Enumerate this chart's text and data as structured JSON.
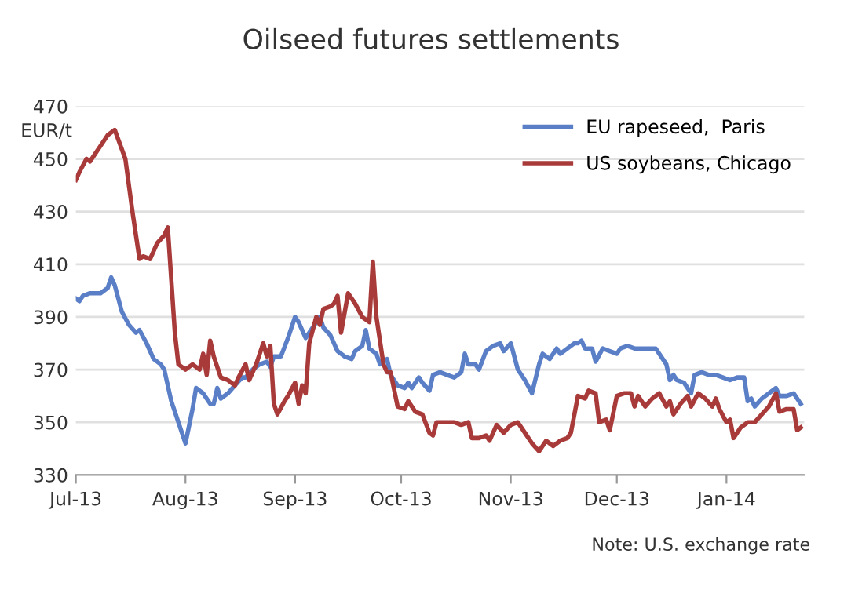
{
  "chart_data": {
    "type": "line",
    "title": "Oilseed futures settlements",
    "ylabel": "EUR/t",
    "xlim": [
      "2013-07-01",
      "2014-01-23"
    ],
    "ylim": [
      330,
      470
    ],
    "yticks": [
      330,
      350,
      370,
      390,
      410,
      430,
      450,
      470
    ],
    "xticks": [
      {
        "value": "2013-07-01",
        "label": "Jul-13"
      },
      {
        "value": "2013-08-01",
        "label": "Aug-13"
      },
      {
        "value": "2013-09-01",
        "label": "Sep-13"
      },
      {
        "value": "2013-10-01",
        "label": "Oct-13"
      },
      {
        "value": "2013-11-01",
        "label": "Nov-13"
      },
      {
        "value": "2013-12-01",
        "label": "Dec-13"
      },
      {
        "value": "2014-01-01",
        "label": "Jan-14"
      }
    ],
    "grid": "y",
    "legend": "top right",
    "line_style": "solid",
    "marker": "none",
    "annotations": [
      "Note: U.S. exchange rate"
    ],
    "series": [
      {
        "name": "EU rapeseed,  Paris",
        "color": "#5b7fc7",
        "x": [
          "2013-07-01",
          "2013-07-02",
          "2013-07-03",
          "2013-07-05",
          "2013-07-08",
          "2013-07-10",
          "2013-07-11",
          "2013-07-12",
          "2013-07-14",
          "2013-07-16",
          "2013-07-18",
          "2013-07-19",
          "2013-07-21",
          "2013-07-23",
          "2013-07-25",
          "2013-07-26",
          "2013-07-28",
          "2013-07-30",
          "2013-08-01",
          "2013-08-03",
          "2013-08-04",
          "2013-08-06",
          "2013-08-08",
          "2013-08-09",
          "2013-08-10",
          "2013-08-11",
          "2013-08-13",
          "2013-08-15",
          "2013-08-17",
          "2013-08-18",
          "2013-08-20",
          "2013-08-22",
          "2013-08-24",
          "2013-08-25",
          "2013-08-26",
          "2013-08-28",
          "2013-08-30",
          "2013-09-01",
          "2013-09-02",
          "2013-09-04",
          "2013-09-06",
          "2013-09-08",
          "2013-09-09",
          "2013-09-11",
          "2013-09-13",
          "2013-09-15",
          "2013-09-17",
          "2013-09-18",
          "2013-09-20",
          "2013-09-21",
          "2013-09-22",
          "2013-09-24",
          "2013-09-25",
          "2013-09-27",
          "2013-09-28",
          "2013-09-30",
          "2013-10-02",
          "2013-10-03",
          "2013-10-04",
          "2013-10-06",
          "2013-10-07",
          "2013-10-09",
          "2013-10-10",
          "2013-10-12",
          "2013-10-14",
          "2013-10-16",
          "2013-10-18",
          "2013-10-19",
          "2013-10-20",
          "2013-10-22",
          "2013-10-23",
          "2013-10-25",
          "2013-10-27",
          "2013-10-29",
          "2013-10-30",
          "2013-11-01",
          "2013-11-03",
          "2013-11-05",
          "2013-11-07",
          "2013-11-09",
          "2013-11-10",
          "2013-11-12",
          "2013-11-14",
          "2013-11-15",
          "2013-11-17",
          "2013-11-19",
          "2013-11-20",
          "2013-11-21",
          "2013-11-22",
          "2013-11-24",
          "2013-11-25",
          "2013-11-27",
          "2013-11-29",
          "2013-12-01",
          "2013-12-02",
          "2013-12-04",
          "2013-12-06",
          "2013-12-08",
          "2013-12-10",
          "2013-12-12",
          "2013-12-14",
          "2013-12-15",
          "2013-12-16",
          "2013-12-17",
          "2013-12-18",
          "2013-12-20",
          "2013-12-22",
          "2013-12-23",
          "2013-12-25",
          "2013-12-27",
          "2013-12-29",
          "2013-12-31",
          "2014-01-02",
          "2014-01-04",
          "2014-01-06",
          "2014-01-07",
          "2014-01-08",
          "2014-01-09",
          "2014-01-11",
          "2014-01-13",
          "2014-01-15",
          "2014-01-16",
          "2014-01-18",
          "2014-01-20",
          "2014-01-22"
        ],
        "values": [
          397,
          396,
          398,
          399,
          399,
          401,
          405,
          402,
          392,
          387,
          384,
          385,
          380,
          374,
          372,
          370,
          358,
          350,
          342,
          355,
          363,
          361,
          357,
          357,
          363,
          359,
          361,
          364,
          367,
          367,
          370,
          372,
          373,
          371,
          375,
          375,
          382,
          390,
          388,
          382,
          386,
          390,
          386,
          383,
          377,
          375,
          374,
          377,
          379,
          385,
          378,
          376,
          372,
          374,
          368,
          364,
          363,
          365,
          363,
          367,
          365,
          362,
          368,
          369,
          368,
          367,
          369,
          376,
          372,
          372,
          370,
          377,
          379,
          380,
          377,
          380,
          370,
          366,
          361,
          372,
          376,
          374,
          378,
          376,
          378,
          380,
          380,
          381,
          378,
          378,
          373,
          378,
          377,
          376,
          378,
          379,
          378,
          378,
          378,
          378,
          374,
          372,
          366,
          368,
          366,
          365,
          361,
          368,
          369,
          368,
          368,
          367,
          366,
          367,
          367,
          358,
          359,
          356,
          359,
          361,
          363,
          360,
          360,
          361,
          357
        ]
      },
      {
        "name": "US soybeans, Chicago",
        "color": "#a83a3a",
        "x": [
          "2013-07-01",
          "2013-07-02",
          "2013-07-04",
          "2013-07-05",
          "2013-07-08",
          "2013-07-10",
          "2013-07-12",
          "2013-07-15",
          "2013-07-17",
          "2013-07-19",
          "2013-07-20",
          "2013-07-22",
          "2013-07-24",
          "2013-07-26",
          "2013-07-27",
          "2013-07-29",
          "2013-07-30",
          "2013-08-01",
          "2013-08-03",
          "2013-08-05",
          "2013-08-06",
          "2013-08-07",
          "2013-08-08",
          "2013-08-09",
          "2013-08-11",
          "2013-08-13",
          "2013-08-15",
          "2013-08-16",
          "2013-08-18",
          "2013-08-19",
          "2013-08-21",
          "2013-08-22",
          "2013-08-23",
          "2013-08-24",
          "2013-08-25",
          "2013-08-26",
          "2013-08-27",
          "2013-08-29",
          "2013-08-30",
          "2013-09-01",
          "2013-09-02",
          "2013-09-03",
          "2013-09-04",
          "2013-09-05",
          "2013-09-07",
          "2013-09-08",
          "2013-09-09",
          "2013-09-11",
          "2013-09-12",
          "2013-09-13",
          "2013-09-14",
          "2013-09-16",
          "2013-09-18",
          "2013-09-20",
          "2013-09-22",
          "2013-09-23",
          "2013-09-24",
          "2013-09-26",
          "2013-09-27",
          "2013-09-28",
          "2013-09-30",
          "2013-10-02",
          "2013-10-03",
          "2013-10-05",
          "2013-10-07",
          "2013-10-09",
          "2013-10-10",
          "2013-10-11",
          "2013-10-14",
          "2013-10-16",
          "2013-10-18",
          "2013-10-20",
          "2013-10-21",
          "2013-10-23",
          "2013-10-25",
          "2013-10-26",
          "2013-10-28",
          "2013-10-30",
          "2013-11-01",
          "2013-11-03",
          "2013-11-05",
          "2013-11-07",
          "2013-11-09",
          "2013-11-11",
          "2013-11-13",
          "2013-11-15",
          "2013-11-17",
          "2013-11-18",
          "2013-11-20",
          "2013-11-22",
          "2013-11-23",
          "2013-11-25",
          "2013-11-26",
          "2013-11-28",
          "2013-11-29",
          "2013-12-01",
          "2013-12-03",
          "2013-12-05",
          "2013-12-06",
          "2013-12-07",
          "2013-12-09",
          "2013-12-11",
          "2013-12-13",
          "2013-12-15",
          "2013-12-16",
          "2013-12-17",
          "2013-12-19",
          "2013-12-21",
          "2013-12-22",
          "2013-12-24",
          "2013-12-26",
          "2013-12-28",
          "2013-12-29",
          "2013-12-30",
          "2014-01-01",
          "2014-01-02",
          "2014-01-03",
          "2014-01-05",
          "2014-01-07",
          "2014-01-09",
          "2014-01-11",
          "2014-01-13",
          "2014-01-15",
          "2014-01-16",
          "2014-01-18",
          "2014-01-20",
          "2014-01-21",
          "2014-01-22"
        ],
        "values": [
          442,
          445,
          450,
          449,
          455,
          459,
          461,
          450,
          430,
          412,
          413,
          412,
          418,
          421,
          424,
          384,
          372,
          370,
          372,
          370,
          376,
          368,
          381,
          375,
          367,
          366,
          364,
          367,
          372,
          366,
          372,
          376,
          380,
          375,
          379,
          357,
          353,
          358,
          360,
          365,
          357,
          364,
          361,
          380,
          390,
          387,
          393,
          394,
          395,
          398,
          384,
          399,
          395,
          390,
          388,
          411,
          390,
          372,
          369,
          369,
          356,
          355,
          358,
          354,
          353,
          346,
          345,
          350,
          350,
          350,
          349,
          350,
          344,
          344,
          345,
          343,
          349,
          346,
          349,
          350,
          346,
          342,
          339,
          343,
          341,
          343,
          344,
          346,
          360,
          359,
          362,
          361,
          350,
          351,
          347,
          360,
          361,
          361,
          356,
          360,
          356,
          359,
          361,
          356,
          358,
          353,
          357,
          360,
          356,
          361,
          359,
          356,
          359,
          355,
          350,
          351,
          344,
          348,
          350,
          350,
          353,
          356,
          361,
          354,
          355,
          355,
          347,
          348
        ]
      }
    ]
  }
}
